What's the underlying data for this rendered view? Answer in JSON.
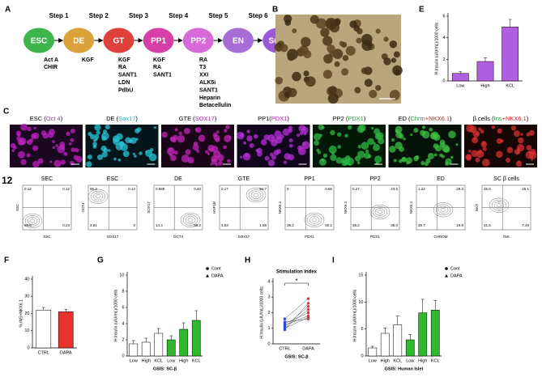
{
  "diagram": {
    "label": "A",
    "steps": [
      "Step 1",
      "Step 2",
      "Step 3",
      "Step 4",
      "Step 5",
      "Step 6"
    ],
    "stages": [
      {
        "label": "ESC",
        "color": "#3db54a"
      },
      {
        "label": "DE",
        "color": "#d9a23a"
      },
      {
        "label": "GT",
        "color": "#e0403a"
      },
      {
        "label": "PP1",
        "color": "#d63fa6"
      },
      {
        "label": "PP2",
        "color": "#d76ad8"
      },
      {
        "label": "EN",
        "color": "#a86cd6"
      },
      {
        "label": "SC-β",
        "color": "#9b59d9"
      }
    ],
    "factors": [
      [
        "Act A",
        "CHIR"
      ],
      [
        "KGF"
      ],
      [
        "KGF",
        "RA",
        "SANT1",
        "LDN",
        "PdbU"
      ],
      [
        "KGF",
        "RA",
        "SANT1"
      ],
      [
        "RA",
        "T3",
        "XXI",
        "ALK5i",
        "SANT1",
        "Heparin",
        "Betacellulin"
      ]
    ]
  },
  "photo": {
    "label": "B"
  },
  "immuno": {
    "label": "C",
    "panels": [
      {
        "parts": [
          {
            "text": "ESC (",
            "color": "#000000"
          },
          {
            "text": "Oct 4",
            "color": "#c020c0"
          },
          {
            "text": ")",
            "color": "#000000"
          }
        ]
      },
      {
        "parts": [
          {
            "text": "DE (",
            "color": "#000000"
          },
          {
            "text": "Sox17",
            "color": "#1fb5c8"
          },
          {
            "text": ")",
            "color": "#000000"
          }
        ]
      },
      {
        "parts": [
          {
            "text": "GTE (",
            "color": "#000000"
          },
          {
            "text": "SOX17",
            "color": "#c020c0"
          },
          {
            "text": ")",
            "color": "#000000"
          }
        ]
      },
      {
        "parts": [
          {
            "text": "PP1(",
            "color": "#000000"
          },
          {
            "text": "PDX1",
            "color": "#c020c0"
          },
          {
            "text": ")",
            "color": "#000000"
          }
        ]
      },
      {
        "parts": [
          {
            "text": "PP2 (",
            "color": "#000000"
          },
          {
            "text": "PDX1",
            "color": "#22a33a"
          },
          {
            "text": ")",
            "color": "#000000"
          }
        ]
      },
      {
        "parts": [
          {
            "text": "ED (",
            "color": "#000000"
          },
          {
            "text": "Chrm",
            "color": "#22a33a"
          },
          {
            "text": "+NKX6.1",
            "color": "#e02020"
          },
          {
            "text": ")",
            "color": "#000000"
          }
        ]
      },
      {
        "parts": [
          {
            "text": "β cells (",
            "color": "#000000"
          },
          {
            "text": "Ins",
            "color": "#22a33a"
          },
          {
            "text": "+NKX6.1",
            "color": "#e02020"
          },
          {
            "text": ")",
            "color": "#000000"
          }
        ]
      }
    ]
  },
  "flow": {
    "label": "12",
    "plots": [
      {
        "title": "SEC",
        "xlabel": "SSC",
        "ylabel": "SSC",
        "q": [
          "0.12",
          "0.12",
          "99.5",
          "0.23"
        ]
      },
      {
        "title": "ESC",
        "xlabel": "SOX17",
        "ylabel": "OCT4",
        "q": [
          "96.3",
          "0.12",
          "3.61",
          "0"
        ]
      },
      {
        "title": "DE",
        "xlabel": "OCT4",
        "ylabel": "SOX17",
        "q": [
          "0.688",
          "0.40",
          "14.3",
          "85.2"
        ]
      },
      {
        "title": "GTE",
        "xlabel": "SOX17",
        "ylabel": "HNF1B",
        "q": [
          "0.17",
          "94.7",
          "3.53",
          "1.58"
        ]
      },
      {
        "title": "PP1",
        "xlabel": "PDX1",
        "ylabel": "NKX6.1",
        "q": [
          "0",
          "0.66",
          "39.2",
          "60.1"
        ]
      },
      {
        "title": "PP2",
        "xlabel": "PDX1",
        "ylabel": "NKX6.1",
        "q": [
          "0.27",
          "23.5",
          "38.2",
          "38.0"
        ]
      },
      {
        "title": "ED",
        "xlabel": "CHROM",
        "ylabel": "NKX6.1",
        "q": [
          "1.22",
          "29.3",
          "39.7",
          "19.8"
        ]
      },
      {
        "title": "SC β cells",
        "xlabel": "INS",
        "ylabel": "NKX",
        "q": [
          "35.6",
          "25.1",
          "31.5",
          "7.49"
        ]
      }
    ]
  },
  "chart_data": [
    {
      "type": "bar",
      "panel": "E",
      "ylabel": "H.Insulin (uIU/mL)/1000 cells",
      "categories": [
        "Low",
        "High",
        "KCL"
      ],
      "values": [
        0.7,
        1.8,
        5.0
      ],
      "errors": [
        0.15,
        0.35,
        0.7
      ],
      "color": "#b05fe0",
      "ylim": [
        0,
        6
      ],
      "yticks": [
        0,
        2,
        4,
        6
      ]
    },
    {
      "type": "bar",
      "panel": "F",
      "ylabel": "% INS+NKX6.1",
      "categories": [
        "CTRL",
        "DAPA"
      ],
      "values": [
        22,
        21
      ],
      "errors": [
        1.5,
        1.5
      ],
      "colors": [
        "#ffffff",
        "#e8302c"
      ],
      "ylim": [
        0,
        40
      ],
      "yticks": [
        0,
        10,
        20,
        30,
        40
      ]
    },
    {
      "type": "bar",
      "panel": "G",
      "ylabel": "H.Insulin (uIU/mL)/1000 cells",
      "xlabel": "GSIS: SC-β",
      "categories": [
        "Low",
        "High",
        "KCL"
      ],
      "series": [
        {
          "name": "Cont",
          "color": "#ffffff",
          "values": [
            1.5,
            1.7,
            2.8
          ],
          "errors": [
            0.4,
            0.5,
            0.6
          ]
        },
        {
          "name": "DAPA",
          "color": "#2db82d",
          "values": [
            2.0,
            3.3,
            4.4
          ],
          "errors": [
            0.5,
            0.8,
            1.2
          ]
        }
      ],
      "ylim": [
        0,
        10
      ],
      "yticks": [
        0,
        2,
        4,
        6,
        8,
        10
      ],
      "legend": "top-right"
    },
    {
      "type": "paired",
      "panel": "H",
      "title": "Stimulation Index",
      "ylabel": "H.Insulin (uIU/mL)/1000 cells",
      "xlabel": "GSIS: SC-β",
      "annotation": "*",
      "categories": [
        "CTRL",
        "DAPA"
      ],
      "point_colors": [
        "#2a4bd7",
        "#e8302c"
      ],
      "pairs": [
        [
          1.0,
          2.2
        ],
        [
          1.2,
          1.8
        ],
        [
          0.9,
          2.6
        ],
        [
          1.4,
          1.6
        ],
        [
          1.6,
          2.9
        ],
        [
          1.1,
          2.4
        ],
        [
          1.3,
          2.0
        ],
        [
          1.0,
          1.7
        ]
      ],
      "ylim": [
        0,
        4
      ],
      "yticks": [
        0,
        1,
        2,
        3,
        4
      ]
    },
    {
      "type": "bar",
      "panel": "I",
      "ylabel": "H.Insulin (uIU/mL)/1000 cells",
      "xlabel": "GSIS: Human Islet",
      "categories": [
        "Low",
        "High",
        "KCL"
      ],
      "series": [
        {
          "name": "Cont",
          "color": "#ffffff",
          "values": [
            1.5,
            4.2,
            5.8
          ],
          "errors": [
            0.3,
            1.0,
            1.6
          ]
        },
        {
          "name": "DAPA",
          "color": "#2db82d",
          "values": [
            3.0,
            8.0,
            8.5
          ],
          "errors": [
            1.0,
            2.5,
            1.8
          ]
        }
      ],
      "ylim": [
        0,
        15
      ],
      "yticks": [
        0,
        5,
        10,
        15
      ],
      "legend": "top-right"
    }
  ]
}
